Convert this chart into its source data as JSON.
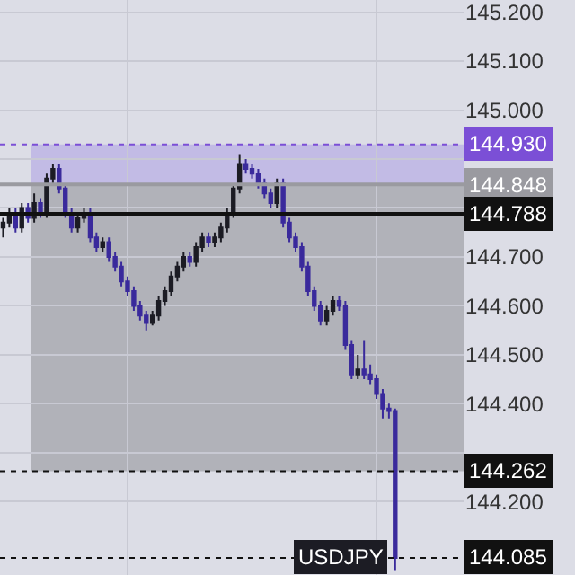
{
  "chart_data": {
    "type": "candlestick",
    "categories": [
      null,
      null,
      null,
      null,
      null,
      null,
      null,
      null,
      null,
      null,
      null,
      null,
      null,
      null,
      null,
      null,
      null,
      null,
      null,
      null,
      null,
      null,
      null,
      null,
      null,
      null,
      null,
      null,
      null,
      null,
      null,
      null,
      null,
      null,
      null,
      null,
      null,
      null,
      null,
      null,
      null,
      null,
      null,
      null,
      null,
      null,
      null,
      null,
      null,
      null,
      null,
      null,
      null,
      null,
      null,
      null,
      null,
      null,
      null,
      null,
      null,
      null,
      null,
      null
    ],
    "ohlc": [
      [
        144.76,
        144.78,
        144.74,
        144.77
      ],
      [
        144.77,
        144.8,
        144.76,
        144.79
      ],
      [
        144.79,
        144.8,
        144.75,
        144.76
      ],
      [
        144.76,
        144.81,
        144.75,
        144.8
      ],
      [
        144.8,
        144.81,
        144.77,
        144.78
      ],
      [
        144.78,
        144.83,
        144.77,
        144.81
      ],
      [
        144.81,
        144.82,
        144.78,
        144.79
      ],
      [
        144.79,
        144.87,
        144.78,
        144.86
      ],
      [
        144.86,
        144.89,
        144.85,
        144.88
      ],
      [
        144.88,
        144.89,
        144.83,
        144.84
      ],
      [
        144.84,
        144.85,
        144.78,
        144.79
      ],
      [
        144.79,
        144.8,
        144.75,
        144.76
      ],
      [
        144.76,
        144.79,
        144.75,
        144.78
      ],
      [
        144.78,
        144.8,
        144.77,
        144.79
      ],
      [
        144.79,
        144.8,
        144.73,
        144.74
      ],
      [
        144.74,
        144.75,
        144.71,
        144.72
      ],
      [
        144.72,
        144.74,
        144.71,
        144.73
      ],
      [
        144.73,
        144.74,
        144.69,
        144.7
      ],
      [
        144.7,
        144.71,
        144.67,
        144.68
      ],
      [
        144.68,
        144.69,
        144.64,
        144.65
      ],
      [
        144.65,
        144.66,
        144.62,
        144.63
      ],
      [
        144.63,
        144.64,
        144.59,
        144.6
      ],
      [
        144.6,
        144.61,
        144.57,
        144.58
      ],
      [
        144.58,
        144.59,
        144.55,
        144.565
      ],
      [
        144.565,
        144.59,
        144.56,
        144.58
      ],
      [
        144.58,
        144.62,
        144.57,
        144.61
      ],
      [
        144.61,
        144.64,
        144.6,
        144.63
      ],
      [
        144.63,
        144.67,
        144.62,
        144.66
      ],
      [
        144.66,
        144.69,
        144.65,
        144.68
      ],
      [
        144.68,
        144.71,
        144.67,
        144.7
      ],
      [
        144.7,
        144.71,
        144.68,
        144.69
      ],
      [
        144.69,
        144.73,
        144.68,
        144.72
      ],
      [
        144.72,
        144.75,
        144.71,
        144.74
      ],
      [
        144.74,
        144.75,
        144.72,
        144.73
      ],
      [
        144.73,
        144.75,
        144.72,
        144.74
      ],
      [
        144.74,
        144.77,
        144.73,
        144.76
      ],
      [
        144.76,
        144.8,
        144.75,
        144.79
      ],
      [
        144.79,
        144.85,
        144.78,
        144.84
      ],
      [
        144.84,
        144.91,
        144.83,
        144.89
      ],
      [
        144.89,
        144.9,
        144.87,
        144.88
      ],
      [
        144.88,
        144.89,
        144.86,
        144.87
      ],
      [
        144.87,
        144.88,
        144.84,
        144.85
      ],
      [
        144.85,
        144.86,
        144.82,
        144.83
      ],
      [
        144.83,
        144.84,
        144.8,
        144.81
      ],
      [
        144.81,
        144.86,
        144.8,
        144.85
      ],
      [
        144.85,
        144.86,
        144.76,
        144.77
      ],
      [
        144.77,
        144.78,
        144.73,
        144.74
      ],
      [
        144.74,
        144.75,
        144.71,
        144.72
      ],
      [
        144.72,
        144.73,
        144.67,
        144.68
      ],
      [
        144.68,
        144.69,
        144.62,
        144.63
      ],
      [
        144.63,
        144.64,
        144.59,
        144.6
      ],
      [
        144.6,
        144.61,
        144.56,
        144.57
      ],
      [
        144.57,
        144.6,
        144.56,
        144.59
      ],
      [
        144.59,
        144.62,
        144.58,
        144.61
      ],
      [
        144.61,
        144.62,
        144.59,
        144.6
      ],
      [
        144.6,
        144.61,
        144.51,
        144.52
      ],
      [
        144.52,
        144.53,
        144.45,
        144.46
      ],
      [
        144.46,
        144.5,
        144.45,
        144.47
      ],
      [
        144.47,
        144.53,
        144.45,
        144.46
      ],
      [
        144.46,
        144.48,
        144.44,
        144.45
      ],
      [
        144.45,
        144.46,
        144.41,
        144.42
      ],
      [
        144.42,
        144.43,
        144.37,
        144.39
      ],
      [
        144.39,
        144.4,
        144.37,
        144.385
      ],
      [
        144.385,
        144.39,
        144.06,
        144.085
      ]
    ],
    "colors": [
      "#1c1c24",
      "#1c1c24",
      "#3a2a9c",
      "#1c1c24",
      "#3a2a9c",
      "#1c1c24",
      "#3a2a9c",
      "#1c1c24",
      "#1c1c24",
      "#3a2a9c",
      "#3a2a9c",
      "#3a2a9c",
      "#1c1c24",
      "#1c1c24",
      "#3a2a9c",
      "#3a2a9c",
      "#1c1c24",
      "#3a2a9c",
      "#3a2a9c",
      "#3a2a9c",
      "#3a2a9c",
      "#3a2a9c",
      "#3a2a9c",
      "#3a2a9c",
      "#1c1c24",
      "#1c1c24",
      "#1c1c24",
      "#1c1c24",
      "#1c1c24",
      "#1c1c24",
      "#3a2a9c",
      "#1c1c24",
      "#1c1c24",
      "#3a2a9c",
      "#1c1c24",
      "#1c1c24",
      "#1c1c24",
      "#1c1c24",
      "#1c1c24",
      "#3a2a9c",
      "#3a2a9c",
      "#3a2a9c",
      "#3a2a9c",
      "#3a2a9c",
      "#1c1c24",
      "#3a2a9c",
      "#3a2a9c",
      "#3a2a9c",
      "#3a2a9c",
      "#3a2a9c",
      "#3a2a9c",
      "#3a2a9c",
      "#1c1c24",
      "#1c1c24",
      "#3a2a9c",
      "#3a2a9c",
      "#3a2a9c",
      "#1c1c24",
      "#3a2a9c",
      "#3a2a9c",
      "#3a2a9c",
      "#3a2a9c",
      "#3a2a9c",
      "#3a2a9c"
    ],
    "ylim": [
      144.05,
      145.225
    ],
    "yticks": [
      {
        "value": 144.2,
        "label": "144.200"
      },
      {
        "value": 144.3,
        "label": null
      },
      {
        "value": 144.4,
        "label": "144.400"
      },
      {
        "value": 144.5,
        "label": "144.500"
      },
      {
        "value": 144.6,
        "label": "144.600"
      },
      {
        "value": 144.7,
        "label": "144.700"
      },
      {
        "value": 144.8,
        "label": null
      },
      {
        "value": 144.9,
        "label": null
      },
      {
        "value": 145.0,
        "label": "145.000"
      },
      {
        "value": 145.1,
        "label": "145.100"
      },
      {
        "value": 145.2,
        "label": "145.200"
      }
    ],
    "tick_labels": "y",
    "grid": true,
    "bands": [
      {
        "axis": "y",
        "from": 144.848,
        "to": 144.93,
        "color": "#ad9fe3"
      },
      {
        "axis": "y",
        "from": 144.262,
        "to": 144.848,
        "color": "#8e8e93"
      }
    ],
    "ref_lines": [
      {
        "axis": "y",
        "value": 144.93,
        "label": "144.930",
        "color": "#7b4fd6",
        "line_style": "dotted"
      },
      {
        "axis": "y",
        "value": 144.848,
        "label": "144.848",
        "color": "#9a9aa0",
        "line_style": "solid"
      },
      {
        "axis": "y",
        "value": 144.788,
        "label": "144.788",
        "color": "#111111",
        "line_style": "solid"
      },
      {
        "axis": "y",
        "value": 144.262,
        "label": "144.262",
        "color": "#111111",
        "line_style": "dotted"
      },
      {
        "axis": "y",
        "value": 144.085,
        "label": "144.085",
        "color": "#111111",
        "line_style": "dotted"
      }
    ],
    "annotations": [
      "USDJPY"
    ]
  }
}
